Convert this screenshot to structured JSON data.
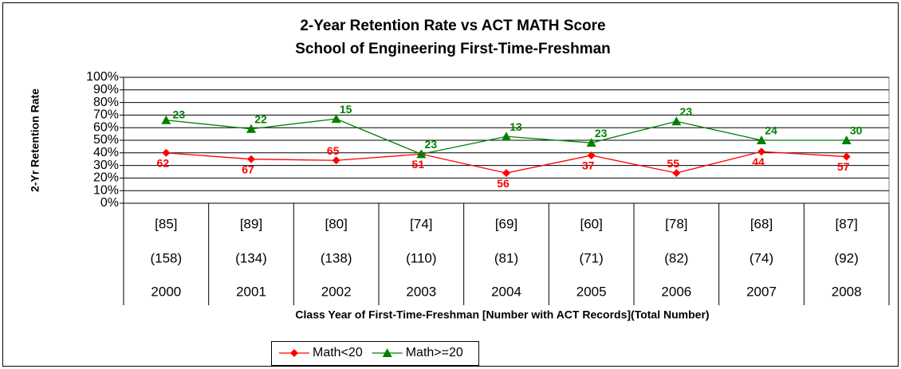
{
  "chart_data": {
    "type": "line",
    "title": [
      "2-Year Retention Rate vs ACT MATH Score",
      "School of Engineering First-Time-Freshman"
    ],
    "y_label": "2-Yr Retention Rate",
    "x_label": "Class Year of First-Time-Freshman [Number with ACT Records](Total Number)",
    "categories": [
      "2000",
      "2001",
      "2002",
      "2003",
      "2004",
      "2005",
      "2006",
      "2007",
      "2008"
    ],
    "act_records": [
      "[85]",
      "[89]",
      "[80]",
      "[74]",
      "[69]",
      "[60]",
      "[78]",
      "[68]",
      "[87]"
    ],
    "totals": [
      "(158)",
      "(134)",
      "(138)",
      "(110)",
      "(81)",
      "(71)",
      "(82)",
      "(74)",
      "(92)"
    ],
    "series": [
      {
        "name": "Math<20",
        "color": "#ff0000",
        "marker": "diamond",
        "values": [
          40,
          35,
          34,
          39,
          24,
          38,
          24,
          41,
          37
        ],
        "point_labels": [
          "62",
          "67",
          "65",
          "51",
          "56",
          "37",
          "55",
          "44",
          "57"
        ]
      },
      {
        "name": "Math>=20",
        "color": "#008000",
        "marker": "triangle",
        "values": [
          66,
          59,
          67,
          39,
          53,
          48,
          65,
          50,
          50
        ],
        "point_labels": [
          "23",
          "22",
          "15",
          "23",
          "13",
          "23",
          "23",
          "24",
          "30"
        ]
      }
    ],
    "ylim": [
      0,
      100
    ],
    "yticks": [
      {
        "value": 0,
        "label": "0%"
      },
      {
        "value": 10,
        "label": "10%"
      },
      {
        "value": 20,
        "label": "20%"
      },
      {
        "value": 30,
        "label": "30%"
      },
      {
        "value": 40,
        "label": "40%"
      },
      {
        "value": 50,
        "label": "50%"
      },
      {
        "value": 60,
        "label": "60%"
      },
      {
        "value": 70,
        "label": "70%"
      },
      {
        "value": 80,
        "label": "80%"
      },
      {
        "value": 90,
        "label": "90%"
      },
      {
        "value": 100,
        "label": "100%"
      }
    ],
    "grid": true,
    "legend": "bottom"
  }
}
